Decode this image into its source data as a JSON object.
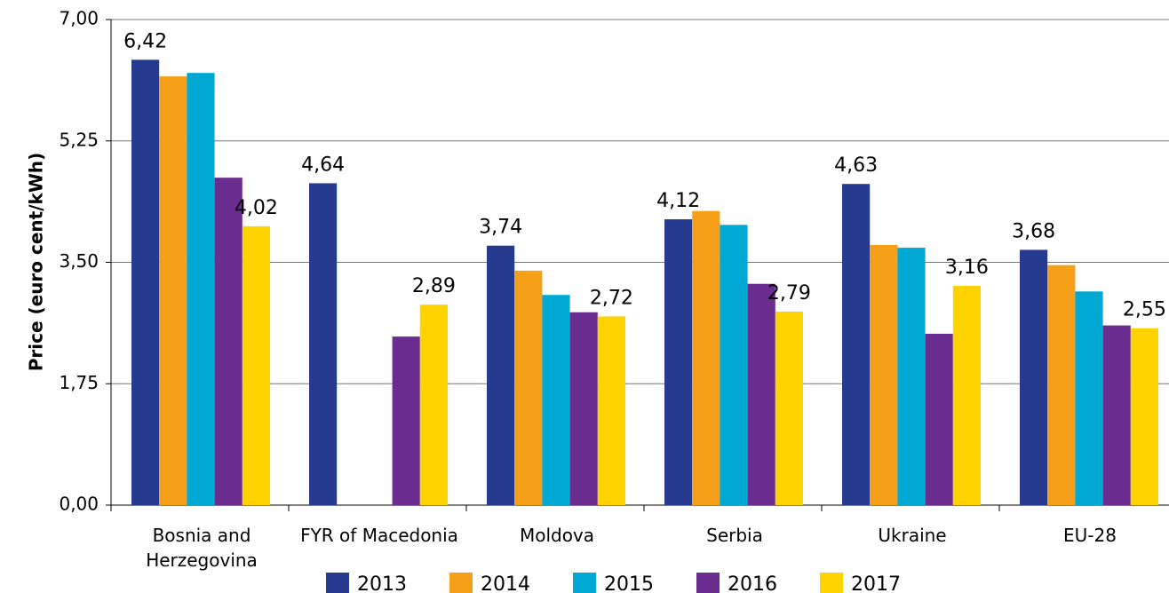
{
  "chart_data": {
    "type": "bar",
    "y_label": "Price (euro cent/kWh)",
    "categories": [
      "Bosnia and Herzegovina",
      "FYR of Macedonia",
      "Moldova",
      "Serbia",
      "Ukraine",
      "EU-28"
    ],
    "series": [
      {
        "name": "2013",
        "color": "#263b8f",
        "values": [
          6.42,
          4.64,
          3.74,
          4.12,
          4.63,
          3.68
        ],
        "value_labels": [
          "6,42",
          "4,64",
          "3,74",
          "4,12",
          "4,63",
          "3,68"
        ]
      },
      {
        "name": "2014",
        "color": "#f6a01a",
        "values": [
          6.18,
          null,
          3.38,
          4.24,
          3.75,
          3.46
        ]
      },
      {
        "name": "2015",
        "color": "#00a8d4",
        "values": [
          6.23,
          null,
          3.03,
          4.04,
          3.71,
          3.08
        ]
      },
      {
        "name": "2016",
        "color": "#6a2c8e",
        "values": [
          4.72,
          2.43,
          2.78,
          3.19,
          2.47,
          2.59
        ]
      },
      {
        "name": "2017",
        "color": "#ffd200",
        "values": [
          4.02,
          2.89,
          2.72,
          2.79,
          3.16,
          2.55
        ],
        "value_labels": [
          "4,02",
          "2,89",
          "2,72",
          "2,79",
          "3,16",
          "2,55"
        ]
      }
    ],
    "ylim": [
      0,
      7
    ],
    "yticks": [
      {
        "value": 0,
        "label": "0,00"
      },
      {
        "value": 1.75,
        "label": "1,75"
      },
      {
        "value": 3.5,
        "label": "3,50"
      },
      {
        "value": 5.25,
        "label": "5,25"
      },
      {
        "value": 7,
        "label": "7,00"
      }
    ],
    "grid": true
  }
}
